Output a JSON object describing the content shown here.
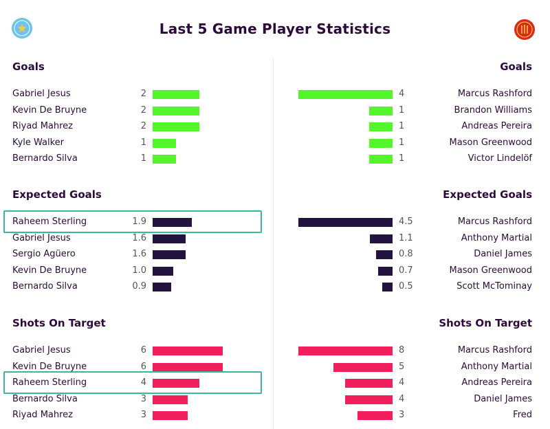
{
  "title": "Last 5 Game Player Statistics",
  "badges": {
    "left_icon": "star-icon",
    "right_icon": "devil-icon",
    "left_color": "#6cc4ee",
    "right_color": "#da291c"
  },
  "chart_data": {
    "type": "bar",
    "sections": [
      {
        "title": "Goals",
        "color": "#54f52a",
        "max": 4,
        "left": [
          {
            "name": "Gabriel Jesus",
            "value": 2,
            "label": "2"
          },
          {
            "name": "Kevin De Bruyne",
            "value": 2,
            "label": "2"
          },
          {
            "name": "Riyad Mahrez",
            "value": 2,
            "label": "2"
          },
          {
            "name": "Kyle Walker",
            "value": 1,
            "label": "1"
          },
          {
            "name": "Bernardo Silva",
            "value": 1,
            "label": "1"
          }
        ],
        "right": [
          {
            "name": "Marcus Rashford",
            "value": 4,
            "label": "4"
          },
          {
            "name": "Brandon Williams",
            "value": 1,
            "label": "1"
          },
          {
            "name": "Andreas Pereira",
            "value": 1,
            "label": "1"
          },
          {
            "name": "Mason Greenwood",
            "value": 1,
            "label": "1"
          },
          {
            "name": "Victor Lindelöf",
            "value": 1,
            "label": "1"
          }
        ]
      },
      {
        "title": "Expected Goals",
        "color": "#23133f",
        "max": 4.5,
        "left": [
          {
            "name": "Raheem Sterling",
            "value": 1.9,
            "label": "1.9",
            "highlight": true
          },
          {
            "name": "Gabriel Jesus",
            "value": 1.6,
            "label": "1.6"
          },
          {
            "name": "Sergio Agüero",
            "value": 1.6,
            "label": "1.6"
          },
          {
            "name": "Kevin De Bruyne",
            "value": 1.0,
            "label": "1.0"
          },
          {
            "name": "Bernardo Silva",
            "value": 0.9,
            "label": "0.9"
          }
        ],
        "right": [
          {
            "name": "Marcus Rashford",
            "value": 4.5,
            "label": "4.5"
          },
          {
            "name": "Anthony Martial",
            "value": 1.1,
            "label": "1.1"
          },
          {
            "name": "Daniel James",
            "value": 0.8,
            "label": "0.8"
          },
          {
            "name": "Mason Greenwood",
            "value": 0.7,
            "label": "0.7"
          },
          {
            "name": "Scott McTominay",
            "value": 0.5,
            "label": "0.5"
          }
        ]
      },
      {
        "title": "Shots On Target",
        "color": "#f21f5d",
        "max": 8,
        "left": [
          {
            "name": "Gabriel Jesus",
            "value": 6,
            "label": "6"
          },
          {
            "name": "Kevin De Bruyne",
            "value": 6,
            "label": "6"
          },
          {
            "name": "Raheem Sterling",
            "value": 4,
            "label": "4",
            "highlight": true
          },
          {
            "name": "Bernardo Silva",
            "value": 3,
            "label": "3"
          },
          {
            "name": "Riyad Mahrez",
            "value": 3,
            "label": "3"
          }
        ],
        "right": [
          {
            "name": "Marcus Rashford",
            "value": 8,
            "label": "8"
          },
          {
            "name": "Anthony Martial",
            "value": 5,
            "label": "5"
          },
          {
            "name": "Andreas Pereira",
            "value": 4,
            "label": "4"
          },
          {
            "name": "Daniel James",
            "value": 4,
            "label": "4"
          },
          {
            "name": "Fred",
            "value": 3,
            "label": "3"
          }
        ]
      }
    ]
  }
}
